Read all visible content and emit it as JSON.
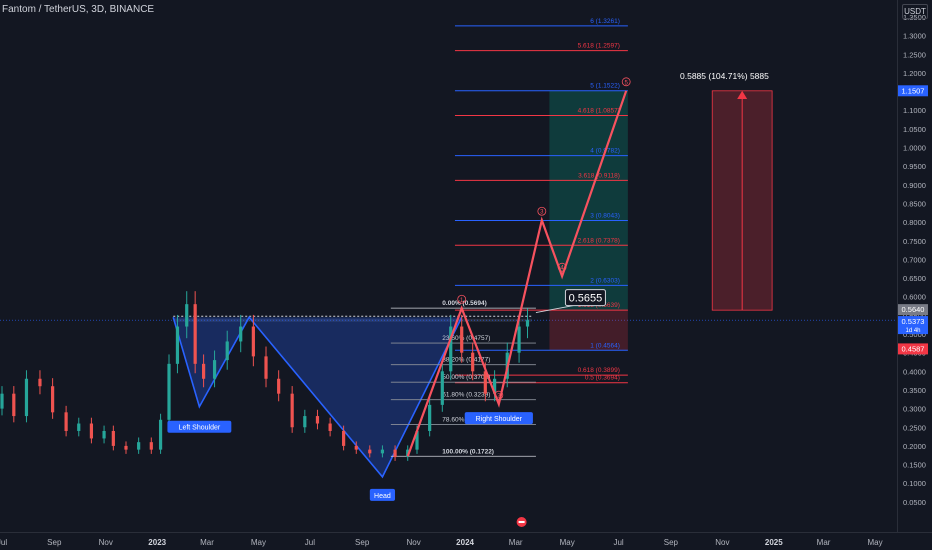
{
  "header": {
    "title": "Fantom / TetherUS, 3D, BINANCE",
    "currency": "USDT"
  },
  "colors": {
    "background": "#131722",
    "candle_up": "#26a69a",
    "candle_down": "#ef5350",
    "fib_blue": "#2962ff",
    "fib_red": "#f23645",
    "wave_red": "#f7525f",
    "pattern_blue": "#2962ff"
  },
  "chart_data": {
    "type": "candlestick",
    "y_axis": {
      "ticks": [
        "1.3500",
        "1.3000",
        "1.2500",
        "1.2000",
        "1.1500",
        "1.1000",
        "1.0500",
        "1.0000",
        "0.9500",
        "0.9000",
        "0.8500",
        "0.8000",
        "0.7500",
        "0.7000",
        "0.6500",
        "0.6000",
        "0.5500",
        "0.5000",
        "0.4500",
        "0.4000",
        "0.3500",
        "0.3000",
        "0.2500",
        "0.2000",
        "0.1500",
        "0.1000",
        "0.0500"
      ],
      "range": [
        0.0,
        1.4
      ]
    },
    "x_axis": {
      "ticks": [
        "Jul",
        "Sep",
        "Nov",
        "2023",
        "Mar",
        "May",
        "Jul",
        "Sep",
        "Nov",
        "2024",
        "Mar",
        "May",
        "Jul",
        "Sep",
        "Nov",
        "2025",
        "Mar",
        "May"
      ]
    },
    "price_badges": [
      {
        "value": "1.1507",
        "color": "#2962ff"
      },
      {
        "value": "0.5640",
        "color": "#787b86"
      },
      {
        "value": "0.5373",
        "color": "#2962ff",
        "sub": "1d 4h"
      },
      {
        "value": "0.4587",
        "color": "#f23645"
      }
    ],
    "fib_projection": [
      {
        "label": "6 (1.3261)",
        "value": 1.3261,
        "color": "blue"
      },
      {
        "label": "5.618 (1.2597)",
        "value": 1.2597,
        "color": "red"
      },
      {
        "label": "5 (1.1522)",
        "value": 1.1522,
        "color": "blue"
      },
      {
        "label": "4.618 (1.0857)",
        "value": 1.0857,
        "color": "red"
      },
      {
        "label": "4 (0.9782)",
        "value": 0.9782,
        "color": "blue"
      },
      {
        "label": "3.618 (0.9118)",
        "value": 0.9118,
        "color": "red"
      },
      {
        "label": "3 (0.8043)",
        "value": 0.8043,
        "color": "blue"
      },
      {
        "label": "2.618 (0.7378)",
        "value": 0.7378,
        "color": "red"
      },
      {
        "label": "2 (0.6303)",
        "value": 0.6303,
        "color": "blue"
      },
      {
        "label": "1.618 (0.5639)",
        "value": 0.5639,
        "color": "red"
      },
      {
        "label": "1 (0.4564)",
        "value": 0.4564,
        "color": "blue"
      },
      {
        "label": "0.618 (0.3899)",
        "value": 0.3899,
        "color": "red"
      },
      {
        "label": "0.5 (0.3694)",
        "value": 0.3694,
        "color": "red"
      }
    ],
    "fib_retracement": [
      {
        "label": "0.00% (0.5694)",
        "value": 0.5694
      },
      {
        "label": "23.60% (0.4757)",
        "value": 0.4757
      },
      {
        "label": "38.20% (0.4177)",
        "value": 0.4177
      },
      {
        "label": "50.00% (0.3708)",
        "value": 0.3708
      },
      {
        "label": "61.80% (0.3239)",
        "value": 0.3239
      },
      {
        "label": "78.60% (0.2572)",
        "value": 0.2572
      },
      {
        "label": "100.00% (0.1722)",
        "value": 0.1722
      }
    ],
    "annotations": {
      "left_shoulder": "Left Shoulder",
      "head": "Head",
      "right_shoulder": "Right Shoulder",
      "target_callout": "0.5655",
      "measure": "0.5885 (104.71%) 5885",
      "waves": [
        "1",
        "2",
        "3",
        "4",
        "5"
      ]
    },
    "neckline": 0.545,
    "head_shoulders_path": [
      [
        "2023-01-20",
        0.545
      ],
      [
        "2023-02-20",
        0.305
      ],
      [
        "2023-04-20",
        0.545
      ],
      [
        "2023-09-25",
        0.117
      ],
      [
        "2023-12-28",
        0.545
      ]
    ],
    "wave_path": [
      [
        "2023-10-25",
        0.172
      ],
      [
        "2023-12-28",
        0.569
      ],
      [
        "2024-02-10",
        0.312
      ],
      [
        "2024-04-01",
        0.805
      ],
      [
        "2024-04-25",
        0.655
      ],
      [
        "2024-07-10",
        1.152
      ]
    ],
    "candles_approx": [
      [
        "2022-07-01",
        0.3,
        0.34
      ],
      [
        "2022-07-15",
        0.34,
        0.28
      ],
      [
        "2022-07-30",
        0.28,
        0.38
      ],
      [
        "2022-08-15",
        0.38,
        0.36
      ],
      [
        "2022-08-30",
        0.36,
        0.29
      ],
      [
        "2022-09-15",
        0.29,
        0.24
      ],
      [
        "2022-09-30",
        0.24,
        0.26
      ],
      [
        "2022-10-15",
        0.26,
        0.22
      ],
      [
        "2022-10-30",
        0.22,
        0.24
      ],
      [
        "2022-11-10",
        0.24,
        0.2
      ],
      [
        "2022-11-25",
        0.2,
        0.19
      ],
      [
        "2022-12-10",
        0.19,
        0.21
      ],
      [
        "2022-12-25",
        0.21,
        0.19
      ],
      [
        "2023-01-05",
        0.19,
        0.27
      ],
      [
        "2023-01-15",
        0.27,
        0.42
      ],
      [
        "2023-01-25",
        0.42,
        0.52
      ],
      [
        "2023-02-05",
        0.52,
        0.58
      ],
      [
        "2023-02-15",
        0.58,
        0.42
      ],
      [
        "2023-02-25",
        0.42,
        0.38
      ],
      [
        "2023-03-10",
        0.38,
        0.43
      ],
      [
        "2023-03-25",
        0.43,
        0.48
      ],
      [
        "2023-04-10",
        0.48,
        0.52
      ],
      [
        "2023-04-25",
        0.52,
        0.44
      ],
      [
        "2023-05-10",
        0.44,
        0.38
      ],
      [
        "2023-05-25",
        0.38,
        0.34
      ],
      [
        "2023-06-10",
        0.34,
        0.25
      ],
      [
        "2023-06-25",
        0.25,
        0.28
      ],
      [
        "2023-07-10",
        0.28,
        0.26
      ],
      [
        "2023-07-25",
        0.26,
        0.24
      ],
      [
        "2023-08-10",
        0.24,
        0.2
      ],
      [
        "2023-08-25",
        0.2,
        0.19
      ],
      [
        "2023-09-10",
        0.19,
        0.18
      ],
      [
        "2023-09-25",
        0.18,
        0.19
      ],
      [
        "2023-10-10",
        0.19,
        0.17
      ],
      [
        "2023-10-25",
        0.17,
        0.19
      ],
      [
        "2023-11-05",
        0.19,
        0.24
      ],
      [
        "2023-11-20",
        0.24,
        0.31
      ],
      [
        "2023-12-05",
        0.31,
        0.4
      ],
      [
        "2023-12-15",
        0.4,
        0.52
      ],
      [
        "2023-12-28",
        0.52,
        0.45
      ],
      [
        "2024-01-10",
        0.45,
        0.4
      ],
      [
        "2024-01-25",
        0.4,
        0.34
      ],
      [
        "2024-02-05",
        0.34,
        0.38
      ],
      [
        "2024-02-20",
        0.38,
        0.45
      ],
      [
        "2024-03-05",
        0.45,
        0.52
      ],
      [
        "2024-03-15",
        0.52,
        0.537
      ]
    ]
  }
}
